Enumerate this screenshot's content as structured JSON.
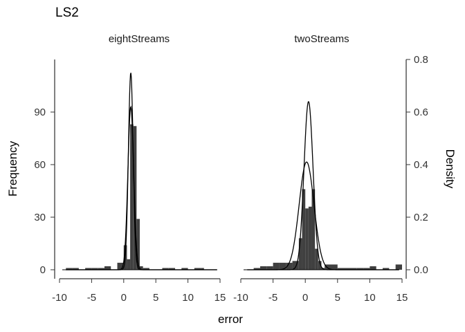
{
  "chart_data": {
    "type": "histogram",
    "title": "LS2",
    "xlabel": "error",
    "ylabel": "Frequency",
    "ylabel_right": "Density",
    "xlim": [
      -10,
      15
    ],
    "x_ticks": [
      -10,
      -5,
      0,
      5,
      10,
      15
    ],
    "x_tick_labels": [
      "-10",
      "-5",
      "0",
      "5",
      "10",
      "15"
    ],
    "ylim": [
      0,
      120
    ],
    "y_ticks": [
      0,
      30,
      60,
      90
    ],
    "y_tick_labels": [
      "0",
      "30",
      "60",
      "90"
    ],
    "y2lim": [
      0,
      0.8
    ],
    "y2_ticks": [
      0,
      0.2,
      0.4,
      0.6,
      0.8
    ],
    "y2_tick_labels": [
      "0.0",
      "0.2",
      "0.4",
      "0.6",
      "0.8"
    ],
    "bar_color": "#404040",
    "line_color": "#000000",
    "panels": [
      {
        "label": "eightStreams",
        "bins": [
          {
            "x0": -9,
            "x1": -8,
            "count": 1
          },
          {
            "x0": -8,
            "x1": -7,
            "count": 1
          },
          {
            "x0": -7,
            "x1": -6,
            "count": 0
          },
          {
            "x0": -6,
            "x1": -5,
            "count": 1
          },
          {
            "x0": -5,
            "x1": -4,
            "count": 1
          },
          {
            "x0": -4,
            "x1": -3,
            "count": 1
          },
          {
            "x0": -3,
            "x1": -2,
            "count": 2
          },
          {
            "x0": -2,
            "x1": -1,
            "count": 0
          },
          {
            "x0": -1,
            "x1": 0,
            "count": 4
          },
          {
            "x0": 0,
            "x1": 0.5,
            "count": 14
          },
          {
            "x0": 0.5,
            "x1": 1,
            "count": 6
          },
          {
            "x0": 1,
            "x1": 1.5,
            "count": 83
          },
          {
            "x0": 1.5,
            "x1": 2,
            "count": 82
          },
          {
            "x0": 2,
            "x1": 2.5,
            "count": 29
          },
          {
            "x0": 2.5,
            "x1": 3,
            "count": 2
          },
          {
            "x0": 3,
            "x1": 4,
            "count": 1
          },
          {
            "x0": 6,
            "x1": 7,
            "count": 1
          },
          {
            "x0": 7,
            "x1": 8,
            "count": 1
          },
          {
            "x0": 9,
            "x1": 10,
            "count": 1
          },
          {
            "x0": 11,
            "x1": 12,
            "count": 1
          },
          {
            "x0": 12,
            "x1": 12.5,
            "count": 1
          }
        ],
        "density_curves": [
          {
            "mean": 1.1,
            "sd": 0.37,
            "peak_density": 0.75
          },
          {
            "mean": 1.1,
            "sd": 0.45,
            "peak_density": 0.62
          }
        ]
      },
      {
        "label": "twoStreams",
        "bins": [
          {
            "x0": -8,
            "x1": -7,
            "count": 1
          },
          {
            "x0": -7,
            "x1": -6,
            "count": 2
          },
          {
            "x0": -6,
            "x1": -5,
            "count": 2
          },
          {
            "x0": -5,
            "x1": -4,
            "count": 4
          },
          {
            "x0": -4,
            "x1": -3,
            "count": 4
          },
          {
            "x0": -3,
            "x1": -2,
            "count": 4
          },
          {
            "x0": -2,
            "x1": -1,
            "count": 5
          },
          {
            "x0": -1,
            "x1": -0.5,
            "count": 18
          },
          {
            "x0": -0.5,
            "x1": 0,
            "count": 46
          },
          {
            "x0": 0,
            "x1": 0.5,
            "count": 35
          },
          {
            "x0": 0.5,
            "x1": 1,
            "count": 36
          },
          {
            "x0": 1,
            "x1": 1.5,
            "count": 46
          },
          {
            "x0": 1.5,
            "x1": 2,
            "count": 12
          },
          {
            "x0": 2,
            "x1": 2.5,
            "count": 5
          },
          {
            "x0": 2.5,
            "x1": 3,
            "count": 1
          },
          {
            "x0": 3,
            "x1": 5,
            "count": 3
          },
          {
            "x0": 5,
            "x1": 8,
            "count": 1
          },
          {
            "x0": 8,
            "x1": 9,
            "count": 1
          },
          {
            "x0": 9,
            "x1": 10,
            "count": 1
          },
          {
            "x0": 10,
            "x1": 11,
            "count": 2
          },
          {
            "x0": 12,
            "x1": 13,
            "count": 1
          },
          {
            "x0": 14,
            "x1": 15,
            "count": 3
          }
        ],
        "density_curves": [
          {
            "mean": 0.5,
            "sd": 0.7,
            "peak_density": 0.64
          },
          {
            "mean": 0.2,
            "sd": 1.15,
            "peak_density": 0.41
          }
        ]
      }
    ]
  }
}
